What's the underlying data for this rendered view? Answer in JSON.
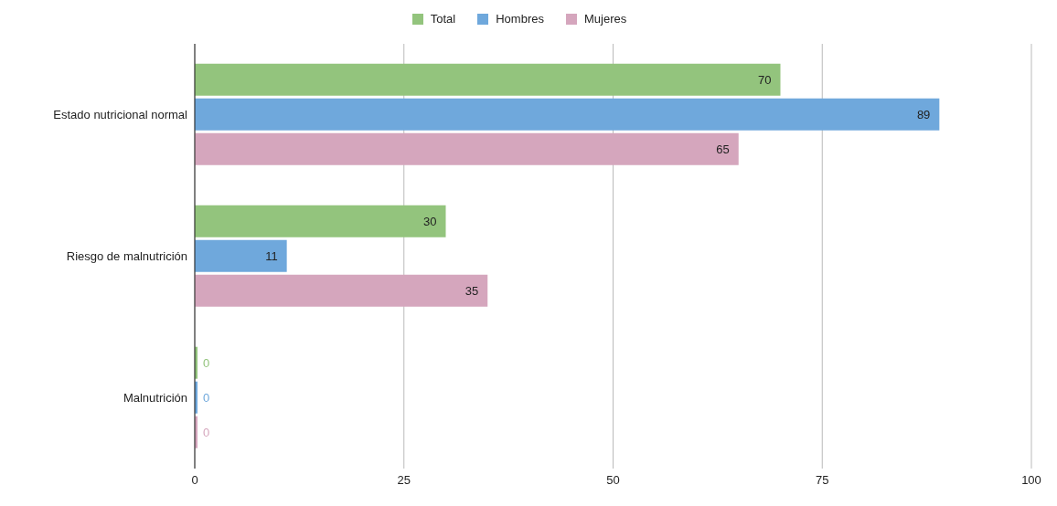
{
  "chart_data": {
    "type": "bar",
    "orientation": "horizontal",
    "categories": [
      "Estado nutricional normal",
      "Riesgo de malnutrición",
      "Malnutrición"
    ],
    "series": [
      {
        "name": "Total",
        "color": "#93c47d",
        "values": [
          70,
          30,
          0
        ]
      },
      {
        "name": "Hombres",
        "color": "#6fa8dc",
        "values": [
          89,
          11,
          0
        ]
      },
      {
        "name": "Mujeres",
        "color": "#d5a6bd",
        "values": [
          65,
          35,
          0
        ]
      }
    ],
    "xlim": [
      0,
      100
    ],
    "xticks": [
      0,
      25,
      50,
      75,
      100
    ],
    "grid": "x",
    "legend": "top",
    "data_labels": true
  }
}
